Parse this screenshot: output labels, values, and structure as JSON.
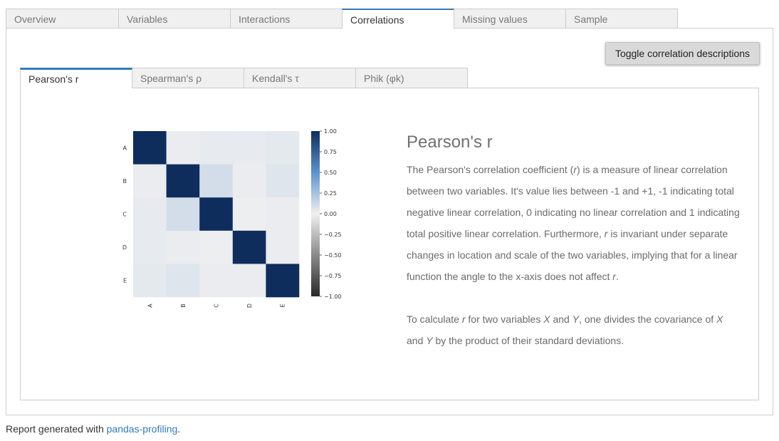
{
  "top_tabs": [
    "Overview",
    "Variables",
    "Interactions",
    "Correlations",
    "Missing values",
    "Sample"
  ],
  "top_active": "Correlations",
  "toggle_button": "Toggle correlation descriptions",
  "inner_tabs": [
    "Pearson's r",
    "Spearman's ρ",
    "Kendall's τ",
    "Phik (φk)"
  ],
  "inner_active": "Pearson's r",
  "description": {
    "title": "Pearson's r",
    "p1_a": "The Pearson's correlation coefficient (",
    "p1_r": "r",
    "p1_b": ") is a measure of linear correlation between two variables. It's value lies between -1 and +1, -1 indicating total negative linear correlation, 0 indicating no linear correlation and 1 indicating total positive linear correlation. Furthermore, ",
    "p1_r2": "r",
    "p1_c": " is invariant under separate changes in location and scale of the two variables, implying that for a linear function the angle to the x-axis does not affect ",
    "p1_r3": "r",
    "p1_d": ".",
    "p2_a": "To calculate ",
    "p2_r": "r",
    "p2_b": " for two variables ",
    "p2_x": "X",
    "p2_c": " and ",
    "p2_y": "Y",
    "p2_d": ", one divides the covariance of ",
    "p2_x2": "X",
    "p2_e": " and ",
    "p2_y2": "Y",
    "p2_f": " by the product of their standard deviations."
  },
  "footer": {
    "prefix": "Report generated with ",
    "link": "pandas-profiling",
    "suffix": "."
  },
  "colors": {
    "accent": "#337ab7",
    "cmap_pos": "#0f2d5c",
    "cmap_mid": "#f0f0f0",
    "cmap_neg": "#2a2a2a"
  },
  "chart_data": {
    "type": "heatmap",
    "title": "",
    "row_labels": [
      "A",
      "B",
      "C",
      "D",
      "E"
    ],
    "col_labels": [
      "A",
      "B",
      "C",
      "D",
      "E"
    ],
    "values": [
      [
        1.0,
        0.02,
        0.03,
        0.03,
        0.04
      ],
      [
        0.02,
        1.0,
        0.1,
        0.02,
        0.06
      ],
      [
        0.03,
        0.1,
        1.0,
        0.01,
        0.02
      ],
      [
        0.03,
        0.02,
        0.01,
        1.0,
        0.02
      ],
      [
        0.04,
        0.06,
        0.02,
        0.02,
        1.0
      ]
    ],
    "vmin": -1.0,
    "vmax": 1.0,
    "colorbar_ticks": [
      "1.00",
      "0.75",
      "0.50",
      "0.25",
      "0.00",
      "−0.25",
      "−0.50",
      "−0.75",
      "−1.00"
    ]
  }
}
